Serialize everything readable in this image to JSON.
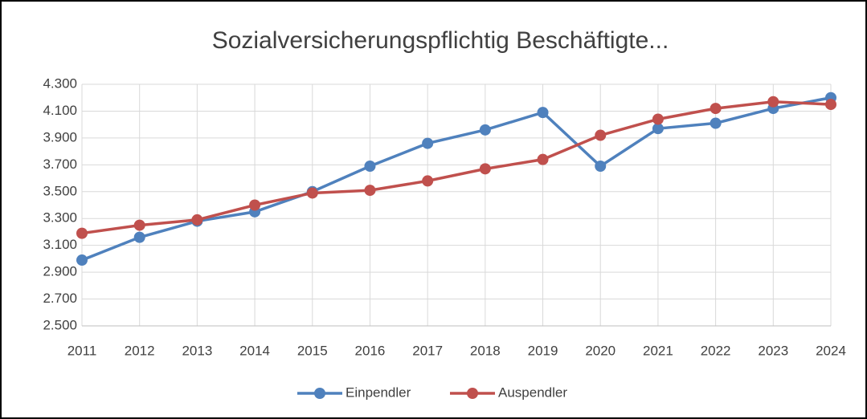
{
  "chart_data": {
    "type": "line",
    "title": "Sozialversicherungspflichtig Beschäftigte...",
    "categories": [
      "2011",
      "2012",
      "2013",
      "2014",
      "2015",
      "2016",
      "2017",
      "2018",
      "2019",
      "2020",
      "2021",
      "2022",
      "2023",
      "2024"
    ],
    "series": [
      {
        "name": "Einpendler",
        "color": "#4f81bd",
        "values": [
          2990,
          3160,
          3280,
          3350,
          3500,
          3690,
          3860,
          3960,
          4090,
          3690,
          3970,
          4010,
          4120,
          4200
        ]
      },
      {
        "name": "Auspendler",
        "color": "#c0504d",
        "values": [
          3190,
          3250,
          3290,
          3400,
          3490,
          3510,
          3580,
          3670,
          3740,
          3920,
          4040,
          4120,
          4170,
          4150
        ]
      }
    ],
    "ylim": [
      2500,
      4300
    ],
    "yticks": [
      {
        "value": 2500,
        "label": "2.500"
      },
      {
        "value": 2700,
        "label": "2.700"
      },
      {
        "value": 2900,
        "label": "2.900"
      },
      {
        "value": 3100,
        "label": "3.100"
      },
      {
        "value": 3300,
        "label": "3.300"
      },
      {
        "value": 3500,
        "label": "3.500"
      },
      {
        "value": 3700,
        "label": "3.700"
      },
      {
        "value": 3900,
        "label": "3.900"
      },
      {
        "value": 4100,
        "label": "4.100"
      },
      {
        "value": 4300,
        "label": "4.300"
      }
    ],
    "grid": true,
    "legend": "bottom"
  }
}
